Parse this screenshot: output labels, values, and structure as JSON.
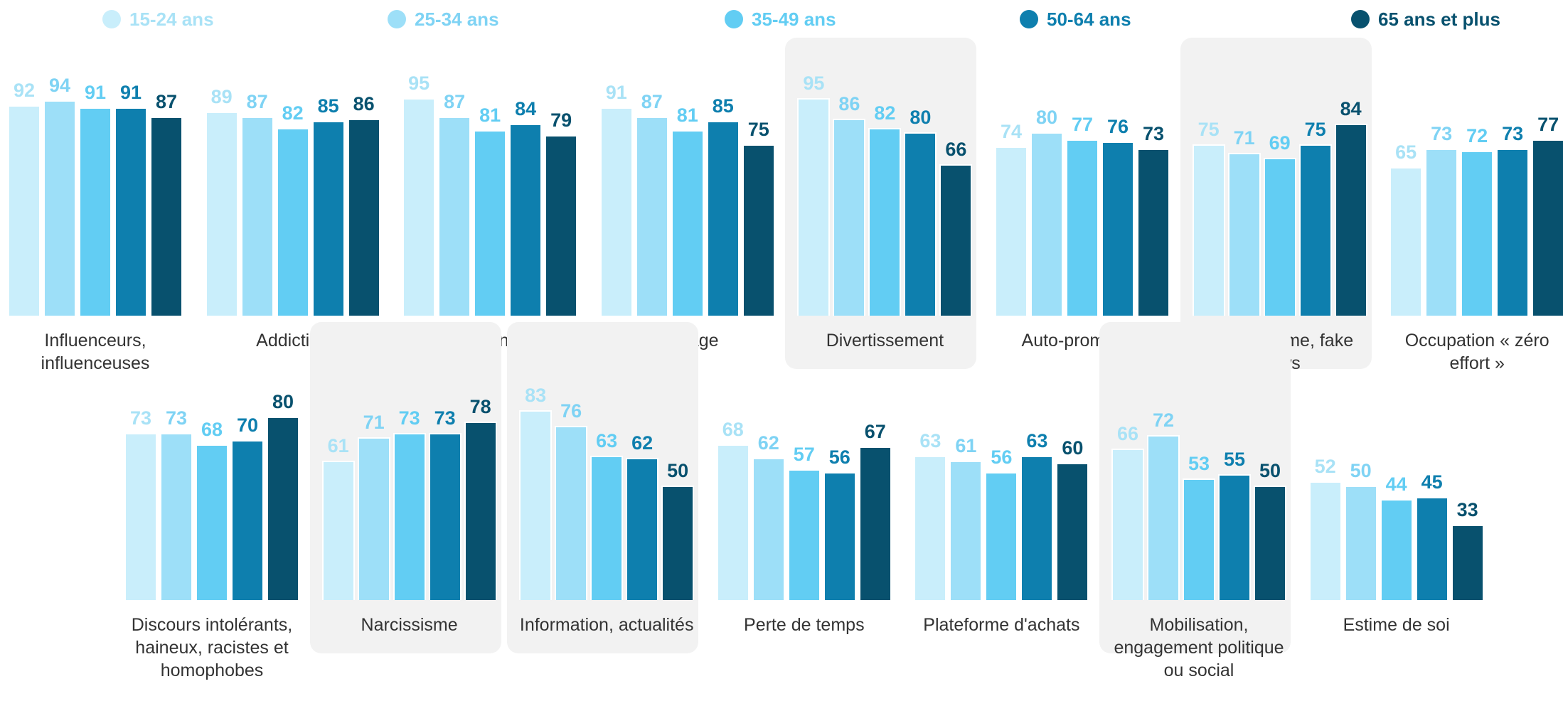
{
  "chart_data": {
    "type": "bar",
    "categories": [
      "Influenceurs, influenceuses",
      "Addiction",
      "Communauté",
      "Partage",
      "Divertissement",
      "Auto-promotion",
      "Complotisme, fake news",
      "Occupation « zéro effort »",
      "Discours intolérants, haineux, racistes et homophobes",
      "Narcissisme",
      "Information, actualités",
      "Perte de temps",
      "Plateforme d'achats",
      "Mobilisation, engagement politique ou social",
      "Estime de soi"
    ],
    "series": [
      {
        "name": "15-24 ans",
        "color": "#c9eefb",
        "values": [
          92,
          89,
          95,
          91,
          95,
          74,
          75,
          65,
          73,
          61,
          83,
          68,
          63,
          66,
          52
        ]
      },
      {
        "name": "25-34 ans",
        "color": "#9ddff8",
        "values": [
          94,
          87,
          87,
          87,
          86,
          80,
          71,
          73,
          73,
          71,
          76,
          62,
          61,
          72,
          50
        ]
      },
      {
        "name": "35-49 ans",
        "color": "#62cdf3",
        "values": [
          91,
          82,
          81,
          81,
          82,
          77,
          69,
          72,
          68,
          73,
          63,
          57,
          56,
          53,
          44
        ]
      },
      {
        "name": "50-64 ans",
        "color": "#0e7fae",
        "values": [
          91,
          85,
          84,
          85,
          80,
          76,
          75,
          73,
          70,
          73,
          62,
          56,
          63,
          55,
          45
        ]
      },
      {
        "name": "65 ans et plus",
        "color": "#08516e",
        "values": [
          87,
          86,
          79,
          75,
          66,
          73,
          84,
          77,
          80,
          78,
          50,
          67,
          60,
          50,
          33
        ]
      }
    ],
    "ylim": [
      0,
      100
    ],
    "highlighted_categories": [
      "Divertissement",
      "Complotisme, fake news",
      "Narcissisme",
      "Information, actualités",
      "Mobilisation, engagement politique ou social"
    ]
  }
}
